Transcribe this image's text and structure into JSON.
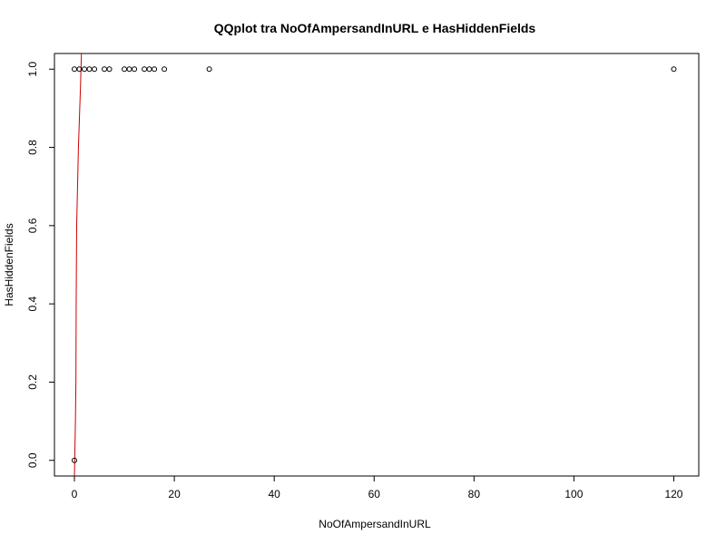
{
  "chart_data": {
    "type": "scatter",
    "title": "QQplot tra NoOfAmpersandInURL e HasHiddenFields",
    "xlabel": "NoOfAmpersandInURL",
    "ylabel": "HasHiddenFields",
    "xlim": [
      -4,
      125
    ],
    "ylim": [
      -0.04,
      1.04
    ],
    "x_ticks": [
      0,
      20,
      40,
      60,
      80,
      100,
      120
    ],
    "y_ticks": [
      0.0,
      0.2,
      0.4,
      0.6,
      0.8,
      1.0
    ],
    "x_tick_labels": [
      "0",
      "20",
      "40",
      "60",
      "80",
      "100",
      "120"
    ],
    "y_tick_labels": [
      "0.0",
      "0.2",
      "0.4",
      "0.6",
      "0.8",
      "1.0"
    ],
    "grid": false,
    "points": [
      {
        "x": 0,
        "y": 0.0
      },
      {
        "x": 0,
        "y": 1.0
      },
      {
        "x": 1,
        "y": 1.0
      },
      {
        "x": 2,
        "y": 1.0
      },
      {
        "x": 3,
        "y": 1.0
      },
      {
        "x": 4,
        "y": 1.0
      },
      {
        "x": 6,
        "y": 1.0
      },
      {
        "x": 7,
        "y": 1.0
      },
      {
        "x": 10,
        "y": 1.0
      },
      {
        "x": 11,
        "y": 1.0
      },
      {
        "x": 12,
        "y": 1.0
      },
      {
        "x": 14,
        "y": 1.0
      },
      {
        "x": 15,
        "y": 1.0
      },
      {
        "x": 16,
        "y": 1.0
      },
      {
        "x": 18,
        "y": 1.0
      },
      {
        "x": 27,
        "y": 1.0
      },
      {
        "x": 120,
        "y": 1.0
      }
    ],
    "reference_line": {
      "color": "#cc0000",
      "points": [
        {
          "x": 0.0,
          "y": -0.04
        },
        {
          "x": 0.2,
          "y": 0.1
        },
        {
          "x": 0.3,
          "y": 0.2
        },
        {
          "x": 0.35,
          "y": 0.4
        },
        {
          "x": 0.45,
          "y": 0.6
        },
        {
          "x": 0.8,
          "y": 0.8
        },
        {
          "x": 1.2,
          "y": 0.95
        },
        {
          "x": 1.4,
          "y": 1.04
        }
      ]
    },
    "colors": {
      "points": "#000000",
      "axes": "#000000"
    }
  }
}
